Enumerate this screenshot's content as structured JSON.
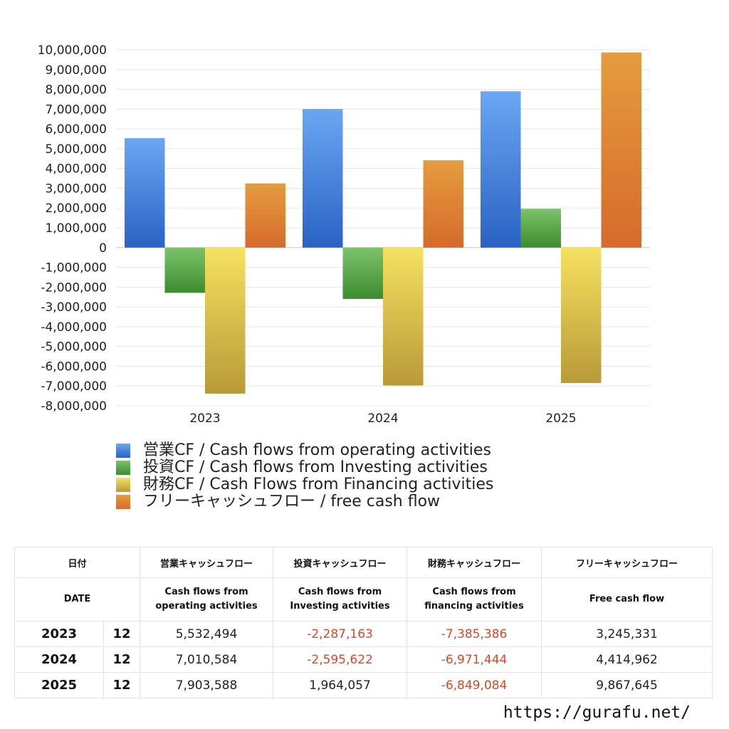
{
  "chart_data": {
    "type": "bar",
    "categories": [
      "2023",
      "2024",
      "2025"
    ],
    "series": [
      {
        "name": "営業CF / Cash flows from operating activities",
        "values": [
          5532494,
          7010584,
          7903588
        ],
        "color_top": "#6aa7f2",
        "color_bottom": "#2a62c4"
      },
      {
        "name": "投資CF / Cash flows from Investing activities",
        "values": [
          -2287163,
          -2595622,
          1964057
        ],
        "color_top": "#7cc36a",
        "color_bottom": "#3d8b30"
      },
      {
        "name": "財務CF / Cash Flows from Financing activities",
        "values": [
          -7385386,
          -6971444,
          -6849084
        ],
        "color_top": "#f6e160",
        "color_bottom": "#b89a38"
      },
      {
        "name": "フリーキャッシュフロー / free cash flow",
        "values": [
          3245331,
          4414962,
          9867645
        ],
        "color_top": "#e59c3e",
        "color_bottom": "#d66a2c"
      }
    ],
    "ylim": [
      -8000000,
      10000000
    ],
    "ytick_step": 1000000,
    "ytick_labels": [
      "10,000,000",
      "9,000,000",
      "8,000,000",
      "7,000,000",
      "6,000,000",
      "5,000,000",
      "4,000,000",
      "3,000,000",
      "2,000,000",
      "1,000,000",
      "0",
      "-1,000,000",
      "-2,000,000",
      "-3,000,000",
      "-4,000,000",
      "-5,000,000",
      "-6,000,000",
      "-7,000,000",
      "-8,000,000"
    ],
    "grid": true,
    "legend_position": "bottom-left"
  },
  "table": {
    "header_jp": {
      "date": "日付",
      "operating": "営業キャッシュフロー",
      "investing": "投資キャッシュフロー",
      "financing": "財務キャッシュフロー",
      "free": "フリーキャッシュフロー"
    },
    "header_en": {
      "date": "DATE",
      "operating_1": "Cash flows from",
      "operating_2": "operating activities",
      "investing_1": "Cash flows from",
      "investing_2": "Investing activities",
      "financing_1": "Cash flows from",
      "financing_2": "financing activities",
      "free": "Free cash flow"
    },
    "rows": [
      {
        "year": "2023",
        "month": "12",
        "operating": "5,532,494",
        "investing": "-2,287,163",
        "financing": "-7,385,386",
        "free": "3,245,331"
      },
      {
        "year": "2024",
        "month": "12",
        "operating": "7,010,584",
        "investing": "-2,595,622",
        "financing": "-6,971,444",
        "free": "4,414,962"
      },
      {
        "year": "2025",
        "month": "12",
        "operating": "7,903,588",
        "investing": "1,964,057",
        "financing": "-6,849,084",
        "free": "9,867,645"
      }
    ]
  },
  "footer": {
    "url": "https://gurafu.net/"
  }
}
